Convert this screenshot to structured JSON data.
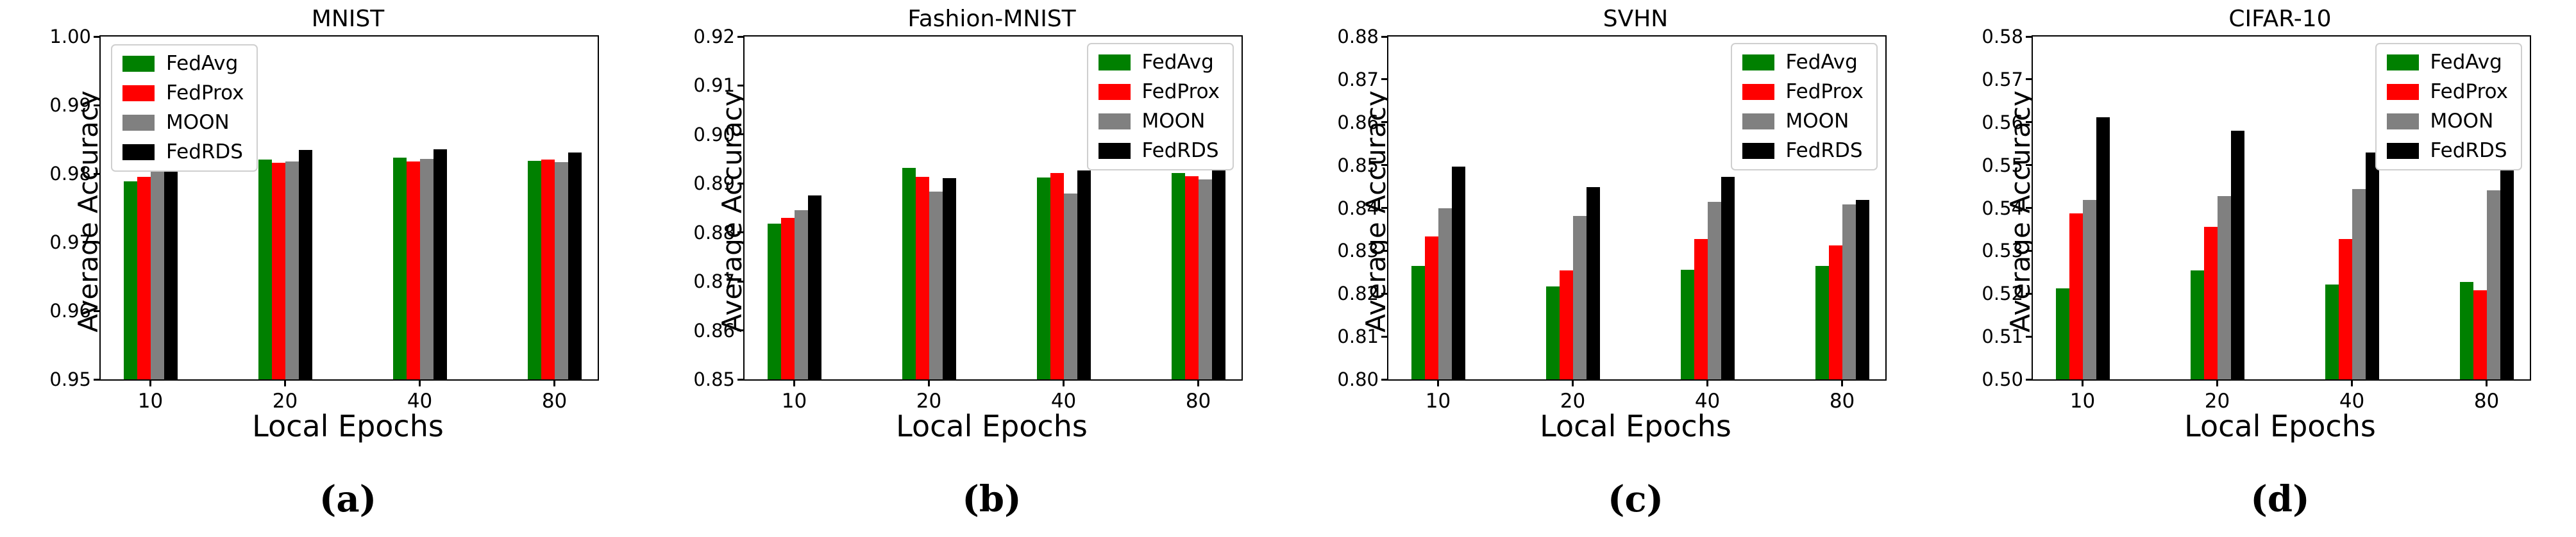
{
  "figure": {
    "ylabel": "Average Accuracy",
    "xlabel": "Local Epochs",
    "x_tick_labels": [
      "10",
      "20",
      "40",
      "80"
    ],
    "legend_entries": [
      "FedAvg",
      "FedProx",
      "MOON",
      "FedRDS"
    ],
    "colors": {
      "FedAvg": "#008000",
      "FedProx": "#ff0000",
      "MOON": "#808080",
      "FedRDS": "#000000"
    }
  },
  "chart_data": [
    {
      "type": "bar",
      "title": "MNIST",
      "sublabel": "(a)",
      "xlabel": "Local Epochs",
      "ylabel": "Average Accuracy",
      "categories": [
        "10",
        "20",
        "40",
        "80"
      ],
      "ylim": [
        0.95,
        1.0
      ],
      "ytick_labels": [
        "0.95",
        "0.96",
        "0.97",
        "0.98",
        "0.99",
        "1.00"
      ],
      "grid": false,
      "legend_position": "top-left",
      "series": [
        {
          "name": "FedAvg",
          "color": "#008000",
          "values": [
            0.9789,
            0.9821,
            0.9823,
            0.9819
          ]
        },
        {
          "name": "FedProx",
          "color": "#ff0000",
          "values": [
            0.9795,
            0.9816,
            0.9818,
            0.9821
          ]
        },
        {
          "name": "MOON",
          "color": "#808080",
          "values": [
            0.9808,
            0.9818,
            0.9822,
            0.9817
          ]
        },
        {
          "name": "FedRDS",
          "color": "#000000",
          "values": [
            0.9825,
            0.9835,
            0.9836,
            0.9831
          ]
        }
      ]
    },
    {
      "type": "bar",
      "title": "Fashion-MNIST",
      "sublabel": "(b)",
      "xlabel": "Local Epochs",
      "ylabel": "Average Accuracy",
      "categories": [
        "10",
        "20",
        "40",
        "80"
      ],
      "ylim": [
        0.85,
        0.92
      ],
      "ytick_labels": [
        "0.85",
        "0.86",
        "0.87",
        "0.88",
        "0.89",
        "0.90",
        "0.91",
        "0.92"
      ],
      "grid": false,
      "legend_position": "top-right",
      "series": [
        {
          "name": "FedAvg",
          "color": "#008000",
          "values": [
            0.8818,
            0.8932,
            0.8912,
            0.8922
          ]
        },
        {
          "name": "FedProx",
          "color": "#ff0000",
          "values": [
            0.883,
            0.8913,
            0.8921,
            0.8915
          ]
        },
        {
          "name": "MOON",
          "color": "#808080",
          "values": [
            0.8845,
            0.8884,
            0.8879,
            0.8908
          ]
        },
        {
          "name": "FedRDS",
          "color": "#000000",
          "values": [
            0.8875,
            0.8911,
            0.8926,
            0.8932
          ]
        }
      ]
    },
    {
      "type": "bar",
      "title": "SVHN",
      "sublabel": "(c)",
      "xlabel": "Local Epochs",
      "ylabel": "Average Accuracy",
      "categories": [
        "10",
        "20",
        "40",
        "80"
      ],
      "ylim": [
        0.8,
        0.88
      ],
      "ytick_labels": [
        "0.80",
        "0.81",
        "0.82",
        "0.83",
        "0.84",
        "0.85",
        "0.86",
        "0.87",
        "0.88"
      ],
      "grid": false,
      "legend_position": "top-right",
      "series": [
        {
          "name": "FedAvg",
          "color": "#008000",
          "values": [
            0.8265,
            0.8217,
            0.8256,
            0.8265
          ]
        },
        {
          "name": "FedProx",
          "color": "#ff0000",
          "values": [
            0.8334,
            0.8254,
            0.8328,
            0.8313
          ]
        },
        {
          "name": "MOON",
          "color": "#808080",
          "values": [
            0.84,
            0.8382,
            0.8414,
            0.8408
          ]
        },
        {
          "name": "FedRDS",
          "color": "#000000",
          "values": [
            0.8497,
            0.8449,
            0.8472,
            0.8419
          ]
        }
      ]
    },
    {
      "type": "bar",
      "title": "CIFAR-10",
      "sublabel": "(d)",
      "xlabel": "Local Epochs",
      "ylabel": "Average Accuracy",
      "categories": [
        "10",
        "20",
        "40",
        "80"
      ],
      "ylim": [
        0.5,
        0.58
      ],
      "ytick_labels": [
        "0.50",
        "0.51",
        "0.52",
        "0.53",
        "0.54",
        "0.55",
        "0.56",
        "0.57",
        "0.58"
      ],
      "grid": false,
      "legend_position": "top-right",
      "series": [
        {
          "name": "FedAvg",
          "color": "#008000",
          "values": [
            0.5213,
            0.5255,
            0.5221,
            0.5227
          ]
        },
        {
          "name": "FedProx",
          "color": "#ff0000",
          "values": [
            0.5387,
            0.5356,
            0.5327,
            0.5208
          ]
        },
        {
          "name": "MOON",
          "color": "#808080",
          "values": [
            0.5419,
            0.5427,
            0.5444,
            0.5441
          ]
        },
        {
          "name": "FedRDS",
          "color": "#000000",
          "values": [
            0.5612,
            0.558,
            0.553,
            0.5525
          ]
        }
      ]
    }
  ]
}
